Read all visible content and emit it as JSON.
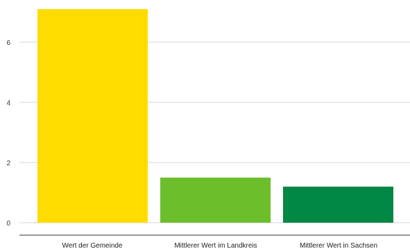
{
  "chart_data": {
    "type": "bar",
    "categories": [
      "Wert der Gemeinde",
      "Mittlerer Wert im Landkreis",
      "Mittlerer Wert in Sachsen"
    ],
    "values": [
      7.1,
      1.5,
      1.2
    ],
    "bar_colors": [
      "#ffdc00",
      "#6cbf2a",
      "#008844"
    ],
    "yticks": [
      "0",
      "2",
      "4",
      "6"
    ],
    "ylim": [
      0,
      7.1
    ],
    "grid": true,
    "legend": "none"
  }
}
